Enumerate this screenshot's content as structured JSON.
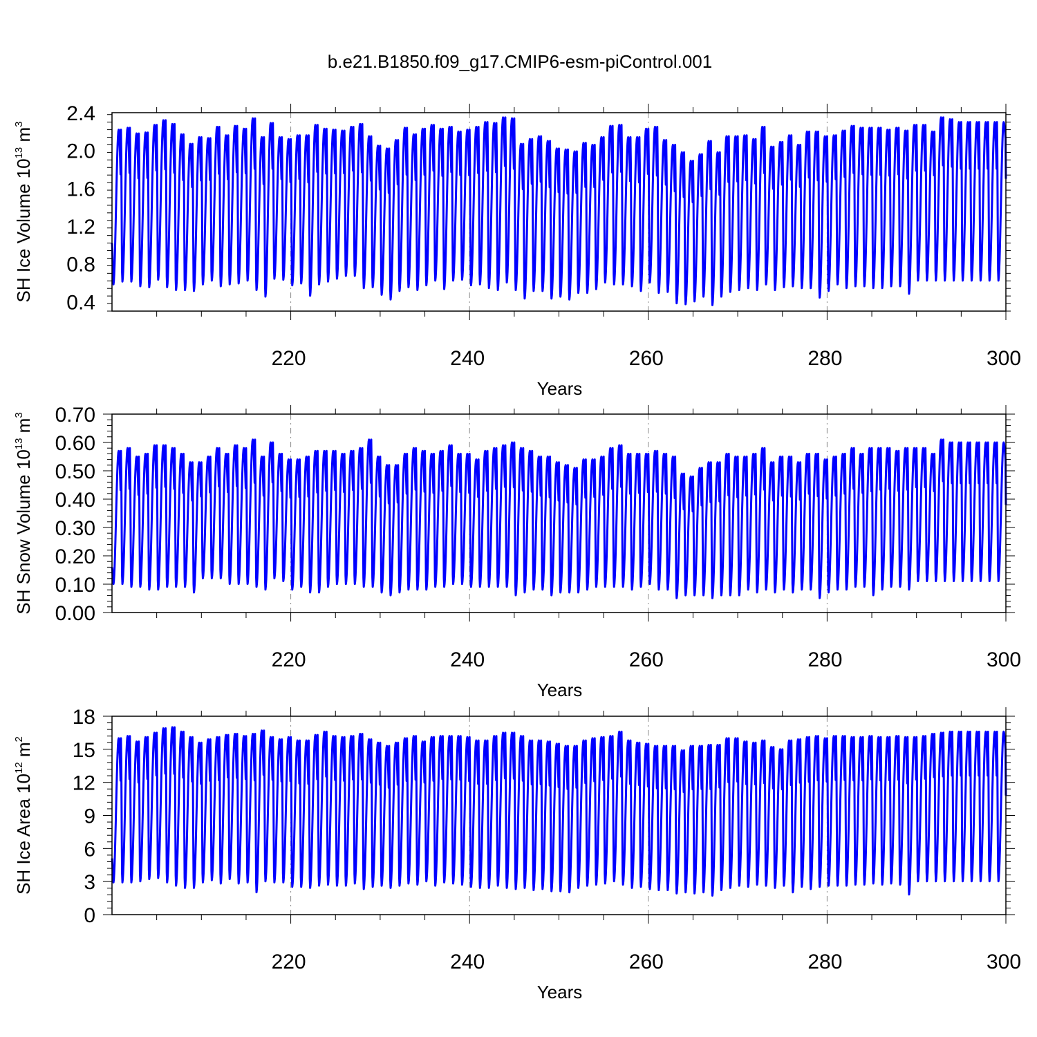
{
  "title": "b.e21.B1850.f09_g17.CMIP6-esm-piControl.001",
  "colors": {
    "line": "#0000ff",
    "axis": "#000000",
    "grid": "#888888"
  },
  "chart_data": [
    {
      "type": "line",
      "ylabel_main": "SH Ice Volume 10",
      "ylabel_exp": "13",
      "ylabel_unit": " m",
      "ylabel_unit_exp": "3",
      "xlabel": "Years",
      "xlim": [
        200,
        300
      ],
      "ylim": [
        0.3,
        2.4
      ],
      "xticks": [
        "220",
        "240",
        "260",
        "280",
        "300"
      ],
      "yticks": [
        "0.4",
        "0.8",
        "1.2",
        "1.6",
        "2.0",
        "2.4"
      ],
      "grid": "x-dashed",
      "series": [
        {
          "x_start": 200,
          "x_end": 300,
          "cycle_years": 1,
          "start_value": 1.02,
          "end_value": 1.7,
          "annual_max": [
            2.22,
            2.24,
            2.18,
            2.19,
            2.27,
            2.32,
            2.28,
            2.17,
            2.07,
            2.14,
            2.13,
            2.25,
            2.16,
            2.26,
            2.23,
            2.34,
            2.14,
            2.29,
            2.14,
            2.12,
            2.16,
            2.16,
            2.27,
            2.23,
            2.22,
            2.21,
            2.25,
            2.28,
            2.15,
            2.05,
            2.02,
            2.11,
            2.24,
            2.17,
            2.23,
            2.27,
            2.23,
            2.25,
            2.2,
            2.22,
            2.25,
            2.3,
            2.29,
            2.35,
            2.34,
            2.07,
            2.12,
            2.15,
            2.1,
            2.02,
            2.01,
            1.99,
            2.08,
            2.06,
            2.14,
            2.26,
            2.27,
            2.14,
            2.14,
            2.23,
            2.25,
            2.11,
            2.06,
            1.98,
            1.89,
            1.96,
            2.1,
            1.98,
            2.15,
            2.15,
            2.16,
            2.12,
            2.25,
            2.04,
            2.09,
            2.16,
            2.06,
            2.2,
            2.2,
            2.15,
            2.16,
            2.21,
            2.26,
            2.24,
            2.24,
            2.24,
            2.22,
            2.24,
            2.21,
            2.27,
            2.27,
            2.2,
            2.35,
            2.33,
            2.3,
            2.3,
            2.3,
            2.3,
            2.3,
            2.3
          ],
          "annual_min": [
            0.58,
            0.61,
            0.61,
            0.56,
            0.55,
            0.63,
            0.55,
            0.52,
            0.52,
            0.51,
            0.58,
            0.62,
            0.56,
            0.58,
            0.59,
            0.62,
            0.52,
            0.45,
            0.64,
            0.63,
            0.57,
            0.59,
            0.46,
            0.58,
            0.61,
            0.64,
            0.67,
            0.67,
            0.54,
            0.55,
            0.47,
            0.42,
            0.51,
            0.55,
            0.52,
            0.57,
            0.62,
            0.53,
            0.62,
            0.63,
            0.57,
            0.58,
            0.54,
            0.52,
            0.6,
            0.52,
            0.43,
            0.51,
            0.51,
            0.43,
            0.45,
            0.42,
            0.49,
            0.49,
            0.53,
            0.6,
            0.58,
            0.58,
            0.56,
            0.51,
            0.6,
            0.49,
            0.5,
            0.38,
            0.37,
            0.4,
            0.45,
            0.36,
            0.45,
            0.5,
            0.52,
            0.54,
            0.52,
            0.58,
            0.52,
            0.55,
            0.56,
            0.54,
            0.54,
            0.44,
            0.51,
            0.58,
            0.54,
            0.56,
            0.56,
            0.54,
            0.54,
            0.56,
            0.56,
            0.48,
            0.62,
            0.62,
            0.62,
            0.62,
            0.62,
            0.62,
            0.62,
            0.62,
            0.62,
            0.62
          ]
        }
      ]
    },
    {
      "type": "line",
      "ylabel_main": "SH Snow Volume 10",
      "ylabel_exp": "13",
      "ylabel_unit": " m",
      "ylabel_unit_exp": "3",
      "xlabel": "Years",
      "xlim": [
        200,
        300
      ],
      "ylim": [
        0.0,
        0.7
      ],
      "xticks": [
        "220",
        "240",
        "260",
        "280",
        "300"
      ],
      "yticks": [
        "0.00",
        "0.10",
        "0.20",
        "0.30",
        "0.40",
        "0.50",
        "0.60",
        "0.70"
      ],
      "grid": "x-dashed",
      "series": [
        {
          "x_start": 200,
          "x_end": 300,
          "cycle_years": 1,
          "start_value": 0.16,
          "end_value": 0.38,
          "annual_max": [
            0.57,
            0.58,
            0.55,
            0.56,
            0.59,
            0.59,
            0.58,
            0.56,
            0.53,
            0.53,
            0.55,
            0.58,
            0.56,
            0.59,
            0.58,
            0.61,
            0.55,
            0.6,
            0.56,
            0.54,
            0.54,
            0.55,
            0.57,
            0.57,
            0.57,
            0.56,
            0.57,
            0.58,
            0.61,
            0.55,
            0.52,
            0.52,
            0.56,
            0.58,
            0.57,
            0.56,
            0.57,
            0.59,
            0.56,
            0.56,
            0.54,
            0.57,
            0.58,
            0.59,
            0.6,
            0.58,
            0.57,
            0.55,
            0.55,
            0.53,
            0.52,
            0.51,
            0.54,
            0.54,
            0.55,
            0.58,
            0.59,
            0.56,
            0.56,
            0.56,
            0.57,
            0.56,
            0.55,
            0.49,
            0.48,
            0.51,
            0.53,
            0.53,
            0.56,
            0.55,
            0.55,
            0.56,
            0.58,
            0.53,
            0.55,
            0.55,
            0.53,
            0.56,
            0.56,
            0.54,
            0.55,
            0.56,
            0.58,
            0.56,
            0.58,
            0.58,
            0.58,
            0.57,
            0.58,
            0.58,
            0.58,
            0.56,
            0.61,
            0.6,
            0.6,
            0.6,
            0.6,
            0.6,
            0.6,
            0.6
          ],
          "annual_min": [
            0.1,
            0.1,
            0.09,
            0.09,
            0.08,
            0.08,
            0.09,
            0.09,
            0.09,
            0.07,
            0.12,
            0.12,
            0.12,
            0.1,
            0.1,
            0.1,
            0.09,
            0.08,
            0.12,
            0.11,
            0.08,
            0.09,
            0.07,
            0.07,
            0.09,
            0.1,
            0.1,
            0.1,
            0.09,
            0.09,
            0.07,
            0.06,
            0.07,
            0.08,
            0.08,
            0.08,
            0.09,
            0.09,
            0.1,
            0.1,
            0.09,
            0.09,
            0.09,
            0.09,
            0.09,
            0.06,
            0.07,
            0.08,
            0.08,
            0.06,
            0.07,
            0.07,
            0.07,
            0.08,
            0.09,
            0.09,
            0.09,
            0.09,
            0.08,
            0.09,
            0.1,
            0.08,
            0.08,
            0.05,
            0.06,
            0.06,
            0.06,
            0.05,
            0.06,
            0.06,
            0.06,
            0.08,
            0.07,
            0.08,
            0.07,
            0.08,
            0.07,
            0.08,
            0.08,
            0.05,
            0.07,
            0.08,
            0.08,
            0.09,
            0.09,
            0.06,
            0.08,
            0.09,
            0.09,
            0.08,
            0.11,
            0.11,
            0.11,
            0.11,
            0.11,
            0.11,
            0.11,
            0.11,
            0.11,
            0.11
          ]
        }
      ]
    },
    {
      "type": "line",
      "ylabel_main": "SH Ice Area 10",
      "ylabel_exp": "12",
      "ylabel_unit": " m",
      "ylabel_unit_exp": "2",
      "xlabel": "Years",
      "xlim": [
        200,
        300
      ],
      "ylim": [
        0,
        18
      ],
      "xticks": [
        "220",
        "240",
        "260",
        "280",
        "300"
      ],
      "yticks": [
        "0",
        "3",
        "6",
        "9",
        "12",
        "15",
        "18"
      ],
      "grid": "x-dashed",
      "series": [
        {
          "x_start": 200,
          "x_end": 300,
          "cycle_years": 1,
          "start_value": 5.1,
          "end_value": 10.8,
          "annual_max": [
            16.0,
            16.2,
            15.7,
            16.1,
            16.5,
            16.9,
            17.0,
            16.6,
            16.1,
            15.6,
            15.9,
            16.1,
            16.3,
            16.4,
            16.2,
            16.4,
            16.7,
            16.1,
            15.9,
            16.1,
            15.8,
            15.8,
            16.3,
            16.6,
            16.2,
            16.1,
            16.2,
            16.4,
            15.9,
            15.6,
            15.3,
            15.6,
            16.0,
            16.2,
            15.7,
            16.1,
            16.2,
            16.2,
            16.2,
            16.1,
            15.8,
            15.8,
            16.2,
            16.5,
            16.5,
            16.2,
            15.8,
            15.8,
            15.7,
            15.5,
            15.3,
            15.3,
            15.8,
            16.0,
            16.1,
            16.2,
            16.6,
            15.8,
            15.6,
            15.5,
            15.3,
            15.3,
            15.3,
            14.9,
            15.3,
            15.3,
            15.4,
            15.4,
            16.0,
            16.0,
            15.7,
            15.6,
            15.8,
            15.2,
            15.0,
            15.8,
            15.9,
            16.1,
            16.2,
            16.0,
            16.2,
            16.2,
            16.1,
            16.1,
            16.2,
            16.1,
            16.1,
            16.2,
            16.1,
            16.1,
            16.2,
            16.4,
            16.5,
            16.6,
            16.6,
            16.6,
            16.6,
            16.6,
            16.6,
            16.6
          ],
          "annual_min": [
            2.9,
            2.9,
            2.9,
            3.0,
            3.2,
            3.3,
            2.9,
            2.6,
            2.4,
            2.4,
            2.9,
            3.1,
            2.8,
            3.2,
            2.8,
            2.9,
            2.0,
            3.0,
            2.9,
            2.9,
            2.5,
            2.5,
            2.4,
            2.6,
            2.7,
            2.6,
            2.6,
            2.8,
            2.3,
            2.5,
            2.6,
            2.4,
            2.6,
            2.8,
            2.7,
            3.0,
            2.6,
            2.9,
            2.8,
            2.7,
            2.5,
            2.4,
            2.4,
            2.6,
            2.4,
            2.3,
            2.4,
            2.2,
            2.3,
            2.1,
            2.1,
            2.0,
            2.4,
            2.6,
            2.7,
            2.8,
            3.0,
            2.7,
            2.4,
            2.5,
            2.3,
            2.2,
            2.2,
            1.9,
            2.0,
            1.9,
            2.0,
            1.7,
            2.2,
            2.4,
            2.6,
            2.5,
            2.7,
            2.6,
            2.4,
            2.6,
            2.0,
            2.5,
            2.3,
            2.5,
            2.6,
            2.6,
            2.6,
            2.7,
            2.7,
            2.8,
            2.7,
            2.8,
            2.7,
            1.8,
            3.0,
            3.0,
            3.0,
            3.0,
            3.0,
            3.0,
            3.0,
            3.0,
            3.0,
            3.0
          ]
        }
      ]
    }
  ]
}
